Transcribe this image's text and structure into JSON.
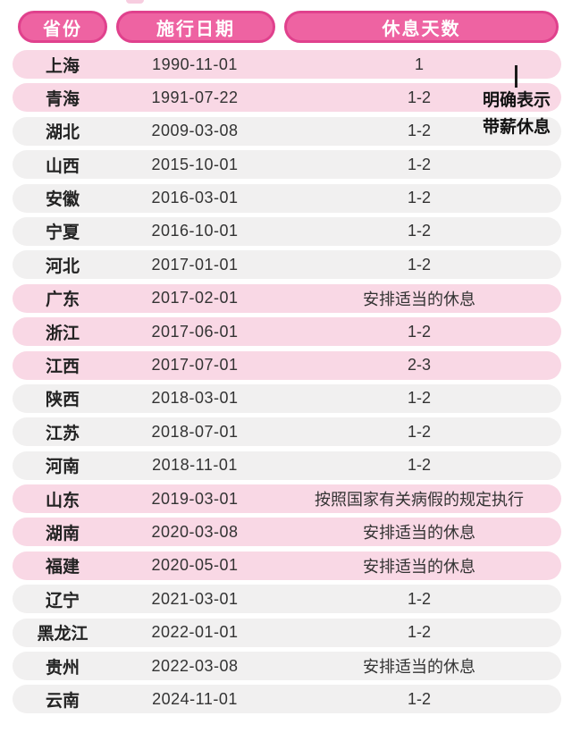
{
  "header": {
    "columns": [
      {
        "label": "省份"
      },
      {
        "label": "施行日期"
      },
      {
        "label": "休息天数"
      }
    ]
  },
  "annotation": {
    "line1": "明确表示",
    "line2": "带薪休息"
  },
  "colors": {
    "header_fill": "#ee63a2",
    "header_border": "#e0418d",
    "row_pink": "#f9d8e5",
    "row_gray": "#f1f0f0",
    "header_text": "#ffffff",
    "body_text": "#333333",
    "annotation_text": "#121212"
  },
  "rows": [
    {
      "province": "上海",
      "date": "1990-11-01",
      "rest": "1",
      "tone": "pink"
    },
    {
      "province": "青海",
      "date": "1991-07-22",
      "rest": "1-2",
      "tone": "pink"
    },
    {
      "province": "湖北",
      "date": "2009-03-08",
      "rest": "1-2",
      "tone": "gray"
    },
    {
      "province": "山西",
      "date": "2015-10-01",
      "rest": "1-2",
      "tone": "gray"
    },
    {
      "province": "安徽",
      "date": "2016-03-01",
      "rest": "1-2",
      "tone": "gray"
    },
    {
      "province": "宁夏",
      "date": "2016-10-01",
      "rest": "1-2",
      "tone": "gray"
    },
    {
      "province": "河北",
      "date": "2017-01-01",
      "rest": "1-2",
      "tone": "gray"
    },
    {
      "province": "广东",
      "date": "2017-02-01",
      "rest": "安排适当的休息",
      "tone": "pink"
    },
    {
      "province": "浙江",
      "date": "2017-06-01",
      "rest": "1-2",
      "tone": "pink"
    },
    {
      "province": "江西",
      "date": "2017-07-01",
      "rest": "2-3",
      "tone": "pink"
    },
    {
      "province": "陕西",
      "date": "2018-03-01",
      "rest": "1-2",
      "tone": "gray"
    },
    {
      "province": "江苏",
      "date": "2018-07-01",
      "rest": "1-2",
      "tone": "gray"
    },
    {
      "province": "河南",
      "date": "2018-11-01",
      "rest": "1-2",
      "tone": "gray"
    },
    {
      "province": "山东",
      "date": "2019-03-01",
      "rest": "按照国家有关病假的规定执行",
      "tone": "pink"
    },
    {
      "province": "湖南",
      "date": "2020-03-08",
      "rest": "安排适当的休息",
      "tone": "pink"
    },
    {
      "province": "福建",
      "date": "2020-05-01",
      "rest": "安排适当的休息",
      "tone": "pink"
    },
    {
      "province": "辽宁",
      "date": "2021-03-01",
      "rest": "1-2",
      "tone": "gray"
    },
    {
      "province": "黑龙江",
      "date": "2022-01-01",
      "rest": "1-2",
      "tone": "gray"
    },
    {
      "province": "贵州",
      "date": "2022-03-08",
      "rest": "安排适当的休息",
      "tone": "gray"
    },
    {
      "province": "云南",
      "date": "2024-11-01",
      "rest": "1-2",
      "tone": "gray"
    }
  ],
  "chart_data": {
    "type": "table",
    "title": "",
    "columns": [
      "省份",
      "施行日期",
      "休息天数"
    ],
    "rows": [
      [
        "上海",
        "1990-11-01",
        "1"
      ],
      [
        "青海",
        "1991-07-22",
        "1-2"
      ],
      [
        "湖北",
        "2009-03-08",
        "1-2"
      ],
      [
        "山西",
        "2015-10-01",
        "1-2"
      ],
      [
        "安徽",
        "2016-03-01",
        "1-2"
      ],
      [
        "宁夏",
        "2016-10-01",
        "1-2"
      ],
      [
        "河北",
        "2017-01-01",
        "1-2"
      ],
      [
        "广东",
        "2017-02-01",
        "安排适当的休息"
      ],
      [
        "浙江",
        "2017-06-01",
        "1-2"
      ],
      [
        "江西",
        "2017-07-01",
        "2-3"
      ],
      [
        "陕西",
        "2018-03-01",
        "1-2"
      ],
      [
        "江苏",
        "2018-07-01",
        "1-2"
      ],
      [
        "河南",
        "2018-11-01",
        "1-2"
      ],
      [
        "山东",
        "2019-03-01",
        "按照国家有关病假的规定执行"
      ],
      [
        "湖南",
        "2020-03-08",
        "安排适当的休息"
      ],
      [
        "福建",
        "2020-05-01",
        "安排适当的休息"
      ],
      [
        "辽宁",
        "2021-03-01",
        "1-2"
      ],
      [
        "黑龙江",
        "2022-01-01",
        "1-2"
      ],
      [
        "贵州",
        "2022-03-08",
        "安排适当的休息"
      ],
      [
        "云南",
        "2024-11-01",
        "1-2"
      ]
    ],
    "annotation": "明确表示带薪休息 (points to first rows)"
  }
}
